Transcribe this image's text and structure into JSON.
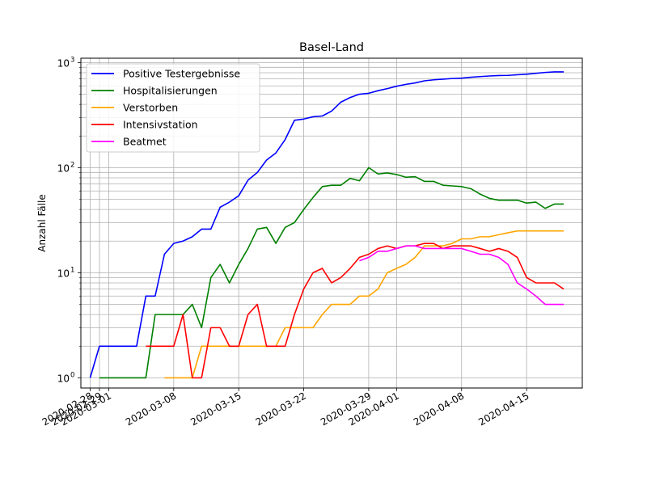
{
  "chart_data": {
    "type": "line",
    "title": "Basel-Land",
    "xlabel": "",
    "ylabel": "Anzahl Fälle",
    "yscale": "log",
    "ylim": [
      0.8,
      1100
    ],
    "xlim": [
      "2020-02-27",
      "2020-04-21"
    ],
    "grid": true,
    "legend_position": "top-left",
    "x_ticks": [
      "2020-02-28",
      "2020-02-29",
      "2020-03-01",
      "2020-03-08",
      "2020-03-15",
      "2020-03-22",
      "2020-03-29",
      "2020-04-01",
      "2020-04-08",
      "2020-04-15"
    ],
    "x_tick_labels": [
      "2020-02-28",
      "2020-02-29",
      "2020-03-01",
      "2020-03-08",
      "2020-03-15",
      "2020-03-22",
      "2020-03-29",
      "2020-04-01",
      "2020-04-08",
      "2020-04-15"
    ],
    "y_ticks": [
      1,
      10,
      100,
      1000
    ],
    "y_tick_labels": [
      "10",
      "10",
      "10",
      "10"
    ],
    "y_tick_exponents": [
      "0",
      "1",
      "2",
      "3"
    ],
    "series": [
      {
        "name": "Positive Testergebnisse",
        "color": "#0000ff",
        "x": [
          "2020-02-28",
          "2020-02-29",
          "2020-03-01",
          "2020-03-02",
          "2020-03-03",
          "2020-03-04",
          "2020-03-05",
          "2020-03-06",
          "2020-03-07",
          "2020-03-08",
          "2020-03-09",
          "2020-03-10",
          "2020-03-11",
          "2020-03-12",
          "2020-03-13",
          "2020-03-14",
          "2020-03-15",
          "2020-03-16",
          "2020-03-17",
          "2020-03-18",
          "2020-03-19",
          "2020-03-20",
          "2020-03-21",
          "2020-03-22",
          "2020-03-23",
          "2020-03-24",
          "2020-03-25",
          "2020-03-26",
          "2020-03-27",
          "2020-03-28",
          "2020-03-29",
          "2020-03-30",
          "2020-03-31",
          "2020-04-01",
          "2020-04-02",
          "2020-04-03",
          "2020-04-04",
          "2020-04-05",
          "2020-04-06",
          "2020-04-07",
          "2020-04-08",
          "2020-04-09",
          "2020-04-10",
          "2020-04-11",
          "2020-04-12",
          "2020-04-13",
          "2020-04-14",
          "2020-04-15",
          "2020-04-16",
          "2020-04-17",
          "2020-04-18",
          "2020-04-19"
        ],
        "values": [
          1,
          2,
          2,
          2,
          2,
          2,
          6,
          6,
          15,
          19,
          20,
          22,
          26,
          26,
          42,
          47,
          54,
          76,
          90,
          118,
          138,
          185,
          282,
          290,
          305,
          310,
          345,
          420,
          465,
          500,
          510,
          540,
          565,
          595,
          620,
          640,
          670,
          685,
          695,
          705,
          710,
          725,
          735,
          745,
          752,
          755,
          765,
          775,
          790,
          805,
          815,
          815
        ]
      },
      {
        "name": "Hospitalisierungen",
        "color": "#008000",
        "x": [
          "2020-02-29",
          "2020-03-01",
          "2020-03-02",
          "2020-03-03",
          "2020-03-04",
          "2020-03-05",
          "2020-03-06",
          "2020-03-07",
          "2020-03-08",
          "2020-03-09",
          "2020-03-10",
          "2020-03-11",
          "2020-03-12",
          "2020-03-13",
          "2020-03-14",
          "2020-03-15",
          "2020-03-16",
          "2020-03-17",
          "2020-03-18",
          "2020-03-19",
          "2020-03-20",
          "2020-03-21",
          "2020-03-22",
          "2020-03-23",
          "2020-03-24",
          "2020-03-25",
          "2020-03-26",
          "2020-03-27",
          "2020-03-28",
          "2020-03-29",
          "2020-03-30",
          "2020-03-31",
          "2020-04-01",
          "2020-04-02",
          "2020-04-03",
          "2020-04-04",
          "2020-04-05",
          "2020-04-06",
          "2020-04-07",
          "2020-04-08",
          "2020-04-09",
          "2020-04-10",
          "2020-04-11",
          "2020-04-12",
          "2020-04-13",
          "2020-04-14",
          "2020-04-15",
          "2020-04-16",
          "2020-04-17",
          "2020-04-18",
          "2020-04-19"
        ],
        "values": [
          1,
          1,
          1,
          1,
          1,
          1,
          4,
          4,
          4,
          4,
          5,
          3,
          9,
          12,
          8,
          12,
          17,
          26,
          27,
          19,
          27,
          30,
          40,
          52,
          66,
          68,
          68,
          79,
          75,
          100,
          87,
          89,
          86,
          81,
          82,
          74,
          74,
          68,
          67,
          66,
          63,
          56,
          51,
          49,
          49,
          49,
          46,
          47,
          41,
          45,
          45
        ]
      },
      {
        "name": "Verstorben",
        "color": "#ffa500",
        "x": [
          "2020-03-07",
          "2020-03-08",
          "2020-03-09",
          "2020-03-10",
          "2020-03-11",
          "2020-03-12",
          "2020-03-13",
          "2020-03-14",
          "2020-03-15",
          "2020-03-16",
          "2020-03-17",
          "2020-03-18",
          "2020-03-19",
          "2020-03-20",
          "2020-03-21",
          "2020-03-22",
          "2020-03-23",
          "2020-03-24",
          "2020-03-25",
          "2020-03-26",
          "2020-03-27",
          "2020-03-28",
          "2020-03-29",
          "2020-03-30",
          "2020-03-31",
          "2020-04-01",
          "2020-04-02",
          "2020-04-03",
          "2020-04-04",
          "2020-04-05",
          "2020-04-06",
          "2020-04-07",
          "2020-04-08",
          "2020-04-09",
          "2020-04-10",
          "2020-04-11",
          "2020-04-12",
          "2020-04-13",
          "2020-04-14",
          "2020-04-15",
          "2020-04-16",
          "2020-04-17",
          "2020-04-18",
          "2020-04-19"
        ],
        "values": [
          1,
          1,
          1,
          1,
          2,
          2,
          2,
          2,
          2,
          2,
          2,
          2,
          2,
          3,
          3,
          3,
          3,
          4,
          5,
          5,
          5,
          6,
          6,
          7,
          10,
          11,
          12,
          14,
          18,
          18,
          18,
          19,
          21,
          21,
          22,
          22,
          23,
          24,
          25,
          25,
          25,
          25,
          25,
          25
        ]
      },
      {
        "name": "Intensivstation",
        "color": "#ff0000",
        "x": [
          "2020-03-05",
          "2020-03-06",
          "2020-03-07",
          "2020-03-08",
          "2020-03-09",
          "2020-03-10",
          "2020-03-11",
          "2020-03-12",
          "2020-03-13",
          "2020-03-14",
          "2020-03-15",
          "2020-03-16",
          "2020-03-17",
          "2020-03-18",
          "2020-03-19",
          "2020-03-20",
          "2020-03-21",
          "2020-03-22",
          "2020-03-23",
          "2020-03-24",
          "2020-03-25",
          "2020-03-26",
          "2020-03-27",
          "2020-03-28",
          "2020-03-29",
          "2020-03-30",
          "2020-03-31",
          "2020-04-01",
          "2020-04-02",
          "2020-04-03",
          "2020-04-04",
          "2020-04-05",
          "2020-04-06",
          "2020-04-07",
          "2020-04-08",
          "2020-04-09",
          "2020-04-10",
          "2020-04-11",
          "2020-04-12",
          "2020-04-13",
          "2020-04-14",
          "2020-04-15",
          "2020-04-16",
          "2020-04-17",
          "2020-04-18",
          "2020-04-19"
        ],
        "values": [
          2,
          2,
          2,
          2,
          4,
          1,
          1,
          3,
          3,
          2,
          2,
          4,
          5,
          2,
          2,
          2,
          4,
          7,
          10,
          11,
          8,
          9,
          11,
          14,
          15,
          17,
          18,
          17,
          18,
          18,
          19,
          19,
          17,
          18,
          18,
          18,
          17,
          16,
          17,
          16,
          14,
          9,
          8,
          8,
          8,
          7
        ]
      },
      {
        "name": "Beatmet",
        "color": "#ff00ff",
        "x": [
          "2020-03-28",
          "2020-03-29",
          "2020-03-30",
          "2020-03-31",
          "2020-04-01",
          "2020-04-02",
          "2020-04-03",
          "2020-04-04",
          "2020-04-05",
          "2020-04-06",
          "2020-04-07",
          "2020-04-08",
          "2020-04-09",
          "2020-04-10",
          "2020-04-11",
          "2020-04-12",
          "2020-04-13",
          "2020-04-14",
          "2020-04-15",
          "2020-04-16",
          "2020-04-17",
          "2020-04-18",
          "2020-04-19"
        ],
        "values": [
          13,
          14,
          16,
          16,
          17,
          18,
          18,
          17,
          17,
          17,
          17,
          17,
          16,
          15,
          15,
          14,
          12,
          8,
          7,
          6,
          5,
          5,
          5
        ]
      }
    ]
  }
}
